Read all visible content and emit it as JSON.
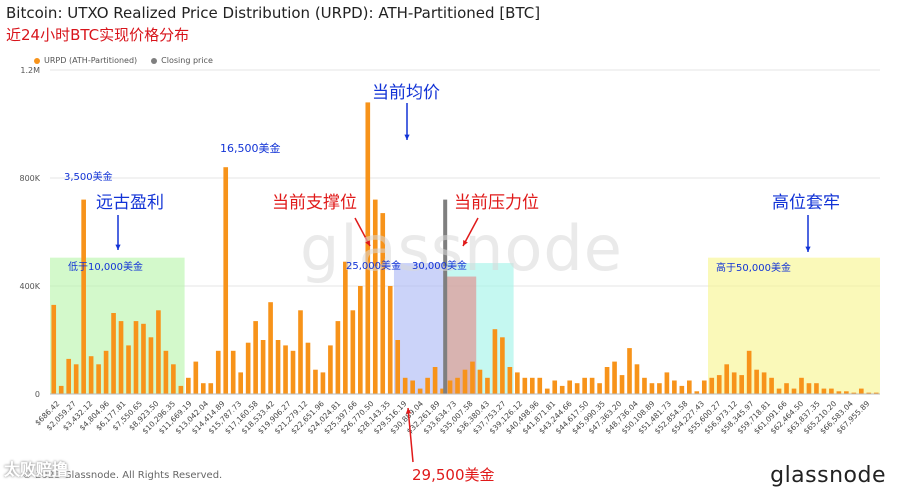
{
  "header": {
    "title": "Bitcoin: UTXO Realized Price Distribution (URPD): ATH-Partitioned [BTC]",
    "subtitle": "近24小时BTC实现价格分布"
  },
  "legend": {
    "series_label": "URPD (ATH-Partitioned)",
    "closing_label": "Closing price"
  },
  "footer": {
    "copyright": "© 2023 Glassnode. All Rights Reserved.",
    "brand": "glassnode",
    "watermark": "glassnode",
    "logo_text": "太败赔撸"
  },
  "colors": {
    "bar": "#f7931a",
    "closing": "#7f7f7f",
    "green_zone": "#b6f5a8",
    "blue_zone": "#a9b6f5",
    "cyan_zone": "#a6f5ea",
    "yellow_zone": "#f6f58a",
    "red_overlay": "#e87a7a",
    "blue_text": "#1233d6",
    "red_text": "#e01a1a"
  },
  "annotations": {
    "far_profit": "远古盈利",
    "below_10k": "低于10,000美金",
    "bar_3500": "3,500美金",
    "bar_16500": "16,500美金",
    "support": "当前支撑位",
    "avg_price": "当前均价",
    "resistance": "当前压力位",
    "high_trapped": "高位套牢",
    "above_50k": "高于50,000美金",
    "label_25000": "25,000美金",
    "label_30000": "30,000美金",
    "label_29500": "29,500美金"
  },
  "chart_data": {
    "type": "bar",
    "title": "Bitcoin: UTXO Realized Price Distribution (URPD): ATH-Partitioned [BTC]",
    "ylim": [
      0,
      1200000
    ],
    "yticks": [
      "0",
      "400K",
      "800K",
      "1.2M"
    ],
    "ytick_values": [
      0,
      400000,
      800000,
      1200000
    ],
    "xtick_labels": [
      "$686.42",
      "$2,059.27",
      "$3,432.12",
      "$4,804.96",
      "$6,177.81",
      "$7,550.65",
      "$8,923.50",
      "$10,296.35",
      "$11,669.19",
      "$13,042.04",
      "$14,414.89",
      "$15,787.73",
      "$17,160.58",
      "$18,533.42",
      "$19,906.27",
      "$21,279.12",
      "$22,651.96",
      "$24,024.81",
      "$25,397.66",
      "$26,770.50",
      "$28,143.35",
      "$29,516.19",
      "$30,889.04",
      "$32,261.89",
      "$33,634.73",
      "$35,007.58",
      "$36,380.43",
      "$37,753.27",
      "$39,126.12",
      "$40,498.96",
      "$41,871.81",
      "$43,244.66",
      "$44,617.50",
      "$45,990.35",
      "$47,363.20",
      "$48,736.04",
      "$50,108.89",
      "$51,481.73",
      "$52,854.58",
      "$54,227.43",
      "$55,600.27",
      "$56,973.12",
      "$58,345.97",
      "$59,718.81",
      "$61,091.66",
      "$62,464.50",
      "$63,837.35",
      "$65,210.20",
      "$66,583.04",
      "$67,955.89"
    ],
    "series": [
      {
        "name": "URPD (ATH-Partitioned)",
        "values": [
          330000,
          30000,
          130000,
          110000,
          720000,
          140000,
          110000,
          160000,
          300000,
          270000,
          180000,
          270000,
          260000,
          210000,
          310000,
          160000,
          110000,
          30000,
          60000,
          120000,
          40000,
          40000,
          160000,
          840000,
          160000,
          80000,
          190000,
          270000,
          200000,
          340000,
          200000,
          180000,
          160000,
          310000,
          190000,
          90000,
          80000,
          180000,
          270000,
          490000,
          310000,
          400000,
          1080000,
          720000,
          670000,
          400000,
          200000,
          60000,
          50000,
          20000,
          60000,
          100000,
          20000,
          50000,
          60000,
          90000,
          120000,
          90000,
          60000,
          240000,
          210000,
          100000,
          80000,
          60000,
          60000,
          60000,
          20000,
          50000,
          30000,
          50000,
          40000,
          60000,
          60000,
          40000,
          100000,
          120000,
          70000,
          170000,
          110000,
          60000,
          40000,
          40000,
          80000,
          50000,
          30000,
          50000,
          10000,
          50000,
          60000,
          70000,
          110000,
          80000,
          70000,
          160000,
          90000,
          80000,
          60000,
          20000,
          40000,
          20000,
          60000,
          40000,
          40000,
          20000,
          20000,
          10000,
          10000,
          5000,
          20000,
          5000,
          5000
        ]
      }
    ],
    "closing_price": {
      "label": "Closing price",
      "x": 29516.19,
      "value": 720000
    }
  }
}
